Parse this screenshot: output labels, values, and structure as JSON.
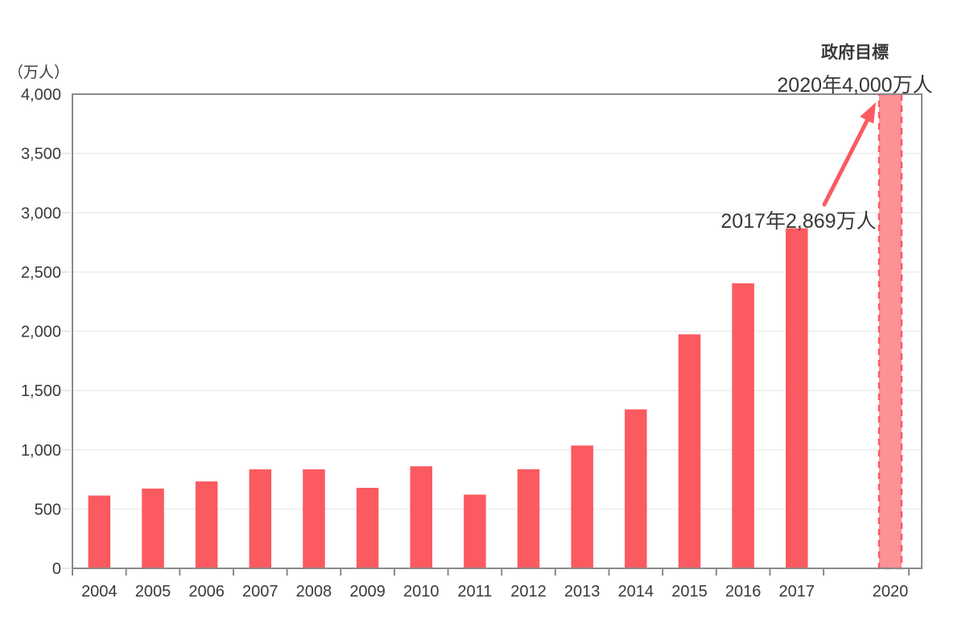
{
  "chart_data": {
    "type": "bar",
    "unit_label": "（万人）",
    "ylim": [
      0,
      4000
    ],
    "ytick_step": 500,
    "grid": true,
    "legend": "none",
    "categories": [
      "2004",
      "2005",
      "2006",
      "2007",
      "2008",
      "2009",
      "2010",
      "2011",
      "2012",
      "2013",
      "2014",
      "2015",
      "2016",
      "2017"
    ],
    "values": [
      614,
      673,
      733,
      835,
      835,
      679,
      861,
      622,
      836,
      1036,
      1341,
      1974,
      2404,
      2869
    ],
    "target_bar": {
      "category": "2020",
      "value": 4000,
      "style": "dashed-outline"
    },
    "annotations": {
      "government_target_line1": "政府目標",
      "government_target_line2": "2020年4,000万人",
      "latest_value": "2017年2,869万人",
      "arrow": "red arrow from latest_value label pointing to top of 2020 target bar"
    },
    "colors": {
      "bar": "#FB5A60",
      "target_fill": "#FC9196",
      "target_border": "#FB5A60",
      "arrow": "#FB5A60",
      "axis_border": "#8A8A8A",
      "gridline": "#F0F0F0",
      "y_tick": "#E7E7E7",
      "text": "#3A3A3A"
    }
  }
}
